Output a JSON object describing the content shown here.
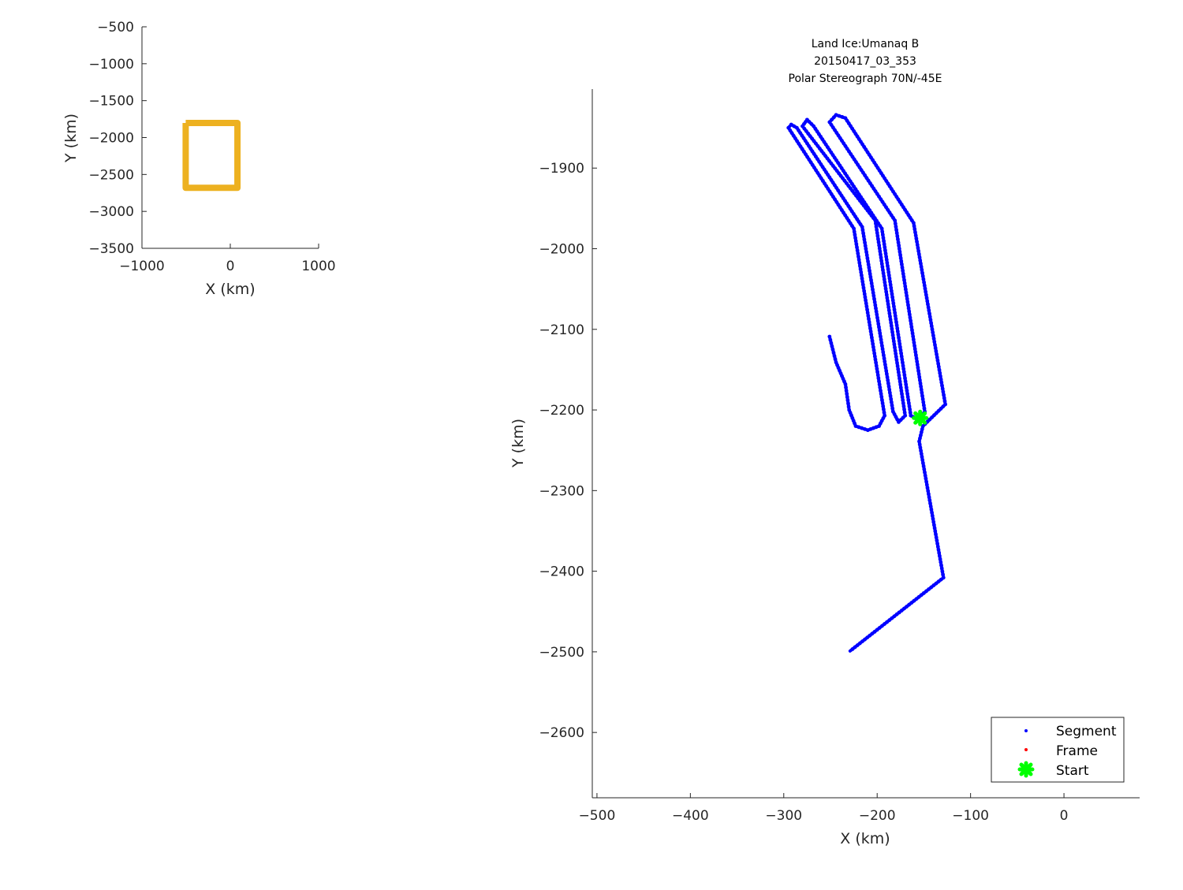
{
  "chart_data": [
    {
      "type": "line",
      "title": "",
      "xlabel": "X (km)",
      "ylabel": "Y (km)",
      "xlim": [
        -1000,
        1000
      ],
      "ylim": [
        -3500,
        -500
      ],
      "xticks": [
        -1000,
        0,
        1000
      ],
      "yticks": [
        -3500,
        -3000,
        -2500,
        -2000,
        -1500,
        -1000,
        -500
      ],
      "grid": false,
      "series": [
        {
          "color": "#EDB120",
          "x": [
            -505,
            81,
            81,
            -505,
            -505
          ],
          "y": [
            -1802,
            -1802,
            -2681,
            -2681,
            -1802
          ]
        }
      ]
    },
    {
      "type": "scatter",
      "title": [
        "Land Ice:Umanaq B",
        "20150417_03_353",
        "Polar Stereograph 70N/-45E"
      ],
      "xlabel": "X (km)",
      "ylabel": "Y (km)",
      "xlim": [
        -505,
        81
      ],
      "ylim": [
        -2681,
        -1802
      ],
      "xticks": [
        -500,
        -400,
        -300,
        -200,
        -100,
        0
      ],
      "yticks": [
        -2600,
        -2500,
        -2400,
        -2300,
        -2200,
        -2100,
        -2000,
        -1900
      ],
      "grid": false,
      "legend_position": "bottom-right",
      "legend": [
        {
          "name": "Segment",
          "color": "#0000FF",
          "marker": "dot"
        },
        {
          "name": "Frame",
          "color": "#FF0000",
          "marker": "dot"
        },
        {
          "name": "Start",
          "color": "#00FF00",
          "marker": "x"
        }
      ],
      "series": [
        {
          "name": "Segment",
          "color": "#0000FF",
          "points": [
            [
              -251,
              -2109
            ],
            [
              -244,
              -2141
            ],
            [
              -234,
              -2168
            ],
            [
              -230,
              -2200
            ],
            [
              -223,
              -2220
            ],
            [
              -210,
              -2225
            ],
            [
              -198,
              -2220
            ],
            [
              -192,
              -2207
            ],
            [
              -225,
              -1975
            ],
            [
              -295,
              -1850
            ],
            [
              -292,
              -1846
            ],
            [
              -286,
              -1850
            ],
            [
              -216,
              -1973
            ],
            [
              -183,
              -2202
            ],
            [
              -177,
              -2215
            ],
            [
              -170,
              -2207
            ],
            [
              -202,
              -1965
            ],
            [
              -280,
              -1848
            ],
            [
              -275,
              -1840
            ],
            [
              -268,
              -1848
            ],
            [
              -195,
              -1975
            ],
            [
              -164,
              -2207
            ],
            [
              -156,
              -2212
            ],
            [
              -149,
              -2202
            ],
            [
              -181,
              -1965
            ],
            [
              -251,
              -1843
            ],
            [
              -244,
              -1834
            ],
            [
              -234,
              -1838
            ],
            [
              -161,
              -1968
            ],
            [
              -127,
              -2193
            ],
            [
              -151,
              -2220
            ],
            [
              -155,
              -2239
            ],
            [
              -129,
              -2408
            ],
            [
              -229,
              -2499
            ]
          ]
        },
        {
          "name": "Start",
          "color": "#00FF00",
          "points": [
            [
              -154,
              -2210
            ]
          ]
        }
      ]
    }
  ]
}
